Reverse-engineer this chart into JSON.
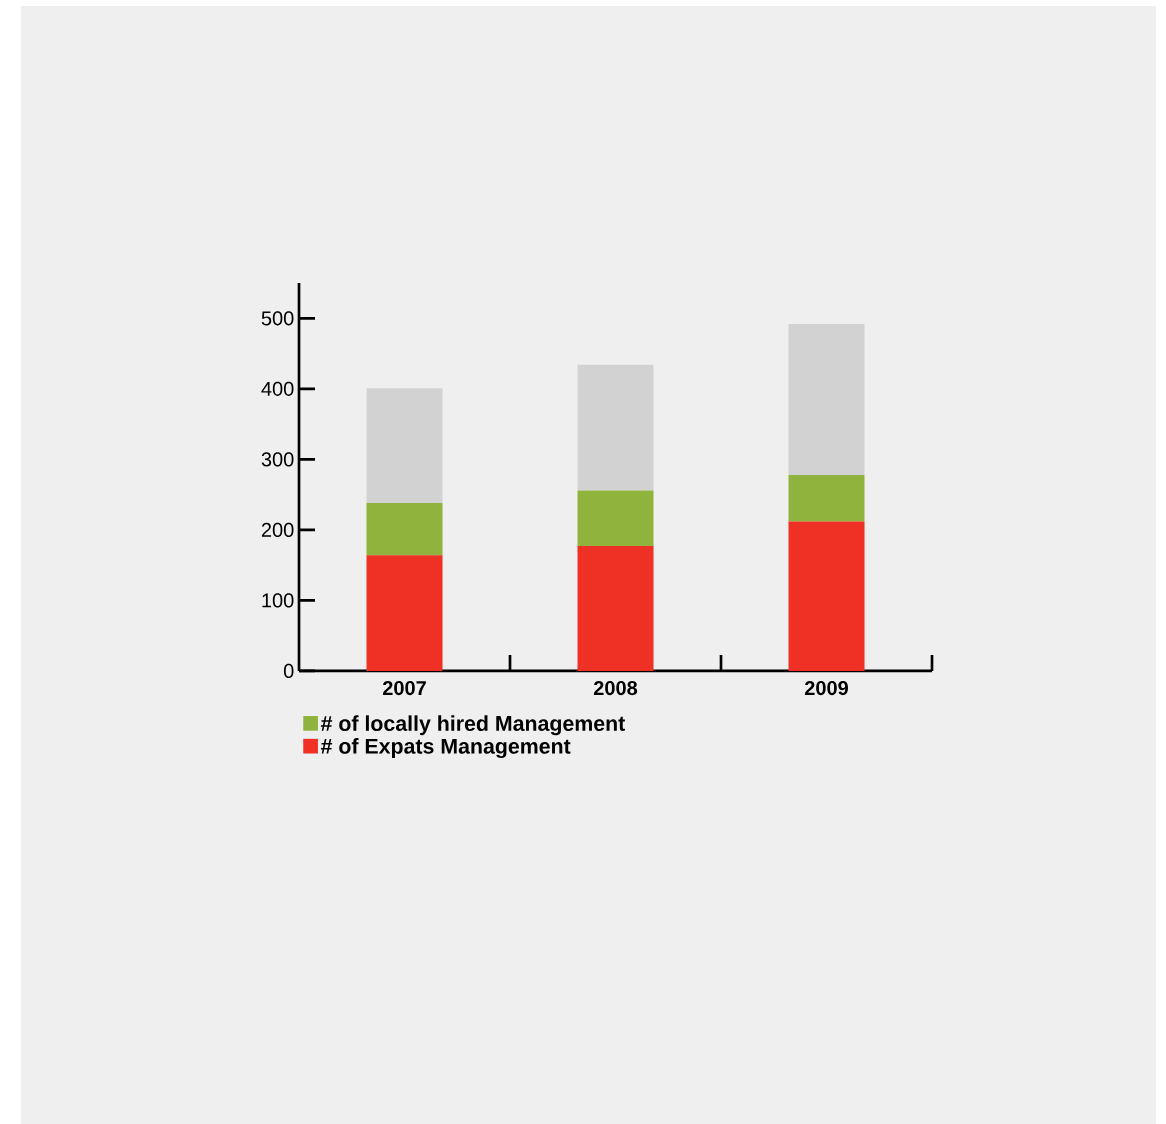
{
  "chart_data": {
    "type": "bar",
    "stacked": true,
    "categories": [
      "2007",
      "2008",
      "2009"
    ],
    "series": [
      {
        "name": "# of Expats Management",
        "color": "#ee3124",
        "values": [
          164,
          177,
          212
        ]
      },
      {
        "name": "# of locally hired Management",
        "color": "#8fb33d",
        "values": [
          74,
          79,
          66
        ]
      },
      {
        "color": "#d2d2d2",
        "values": [
          163,
          178,
          214
        ]
      }
    ],
    "ylim": [
      0,
      550
    ],
    "yticks": [
      0,
      100,
      200,
      300,
      400,
      500
    ],
    "grid": false,
    "legend": "bottom left"
  }
}
